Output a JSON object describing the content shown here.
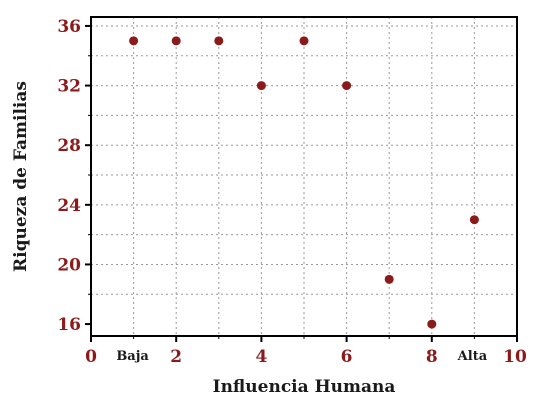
{
  "chart_data": {
    "type": "scatter",
    "title": "",
    "xlabel": "Influencia Humana",
    "ylabel": "Riqueza de Familias",
    "xlim": [
      0,
      10
    ],
    "ylim": [
      15.2,
      36.6
    ],
    "x_ticks": [
      0,
      2,
      4,
      6,
      8,
      10
    ],
    "y_ticks": [
      16,
      20,
      24,
      28,
      32,
      36
    ],
    "x_category_labels": [
      {
        "x": 1,
        "label": "Baja"
      },
      {
        "x": 9,
        "label": "Alta"
      }
    ],
    "grid": true,
    "series": [
      {
        "x": [
          1,
          2,
          3,
          4,
          5,
          6,
          7,
          8,
          9
        ],
        "y": [
          35,
          35,
          35,
          32,
          35,
          32,
          19,
          16,
          23
        ]
      }
    ]
  },
  "colors": {
    "point": "#8b1a1a",
    "tick_label": "#8b1a1a",
    "axis": "#000000",
    "grid": "#9a9a9a"
  }
}
